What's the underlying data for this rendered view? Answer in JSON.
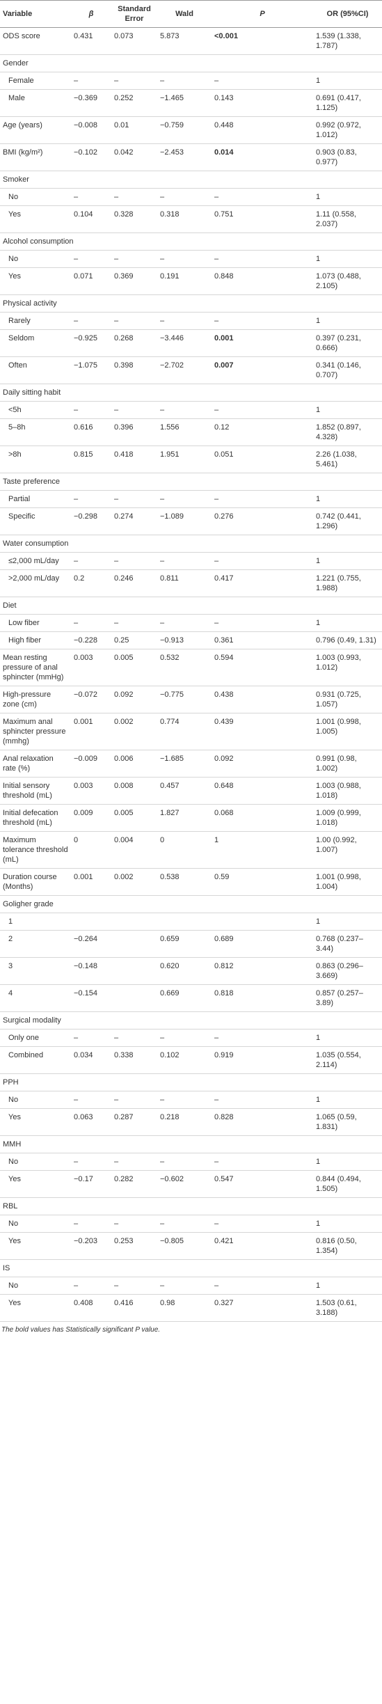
{
  "table": {
    "header": [
      "Variable",
      "β",
      "Standard Error",
      "Wald",
      "P",
      "OR (95%CI)"
    ],
    "rows": [
      {
        "cells": [
          "ODS score",
          "0.431",
          "0.073",
          "5.873",
          "<0.001",
          "1.539 (1.338, 1.787)"
        ],
        "bold": [
          4
        ]
      },
      {
        "cells": [
          "Gender"
        ]
      },
      {
        "cells": [
          "Female",
          "–",
          "–",
          "–",
          "–",
          "1"
        ],
        "indent": true
      },
      {
        "cells": [
          "Male",
          "−0.369",
          "0.252",
          "−1.465",
          "0.143",
          "0.691 (0.417, 1.125)"
        ],
        "indent": true
      },
      {
        "cells": [
          "Age (years)",
          "−0.008",
          "0.01",
          "−0.759",
          "0.448",
          "0.992 (0.972, 1.012)"
        ]
      },
      {
        "cells": [
          "BMI (kg/m²)",
          "−0.102",
          "0.042",
          "−2.453",
          "0.014",
          "0.903 (0.83, 0.977)"
        ],
        "bold": [
          4
        ]
      },
      {
        "cells": [
          "Smoker"
        ]
      },
      {
        "cells": [
          "No",
          "–",
          "–",
          "–",
          "–",
          "1"
        ],
        "indent": true
      },
      {
        "cells": [
          "Yes",
          "0.104",
          "0.328",
          "0.318",
          "0.751",
          "1.11 (0.558, 2.037)"
        ],
        "indent": true
      },
      {
        "cells": [
          "Alcohol consumption"
        ]
      },
      {
        "cells": [
          "No",
          "–",
          "–",
          "–",
          "–",
          "1"
        ],
        "indent": true
      },
      {
        "cells": [
          "Yes",
          "0.071",
          "0.369",
          "0.191",
          "0.848",
          "1.073 (0.488, 2.105)"
        ],
        "indent": true
      },
      {
        "cells": [
          "Physical activity"
        ]
      },
      {
        "cells": [
          "Rarely",
          "–",
          "–",
          "–",
          "–",
          "1"
        ],
        "indent": true
      },
      {
        "cells": [
          "Seldom",
          "−0.925",
          "0.268",
          "−3.446",
          "0.001",
          "0.397 (0.231, 0.666)"
        ],
        "indent": true,
        "bold": [
          4
        ]
      },
      {
        "cells": [
          "Often",
          "−1.075",
          "0.398",
          "−2.702",
          "0.007",
          "0.341 (0.146, 0.707)"
        ],
        "indent": true,
        "bold": [
          4
        ]
      },
      {
        "cells": [
          "Daily sitting habit"
        ]
      },
      {
        "cells": [
          "<5h",
          "–",
          "–",
          "–",
          "–",
          "1"
        ],
        "indent": true
      },
      {
        "cells": [
          "5–8h",
          "0.616",
          "0.396",
          "1.556",
          "0.12",
          "1.852 (0.897, 4.328)"
        ],
        "indent": true
      },
      {
        "cells": [
          ">8h",
          "0.815",
          "0.418",
          "1.951",
          "0.051",
          "2.26 (1.038, 5.461)"
        ],
        "indent": true
      },
      {
        "cells": [
          "Taste preference"
        ]
      },
      {
        "cells": [
          "Partial",
          "–",
          "–",
          "–",
          "–",
          "1"
        ],
        "indent": true
      },
      {
        "cells": [
          "Specific",
          "−0.298",
          "0.274",
          "−1.089",
          "0.276",
          "0.742 (0.441, 1.296)"
        ],
        "indent": true
      },
      {
        "cells": [
          "Water consumption"
        ]
      },
      {
        "cells": [
          "≤2,000 mL/day",
          "–",
          "–",
          "–",
          "–",
          "1"
        ],
        "indent": true
      },
      {
        "cells": [
          ">2,000 mL/day",
          "0.2",
          "0.246",
          "0.811",
          "0.417",
          "1.221 (0.755, 1.988)"
        ],
        "indent": true
      },
      {
        "cells": [
          "Diet"
        ]
      },
      {
        "cells": [
          "Low fiber",
          "–",
          "–",
          "–",
          "–",
          "1"
        ],
        "indent": true
      },
      {
        "cells": [
          "High fiber",
          "−0.228",
          "0.25",
          "−0.913",
          "0.361",
          "0.796 (0.49, 1.31)"
        ],
        "indent": true
      },
      {
        "cells": [
          "Mean resting pressure of anal sphincter (mmHg)",
          "0.003",
          "0.005",
          "0.532",
          "0.594",
          "1.003 (0.993, 1.012)"
        ]
      },
      {
        "cells": [
          "High-pressure zone (cm)",
          "−0.072",
          "0.092",
          "−0.775",
          "0.438",
          "0.931 (0.725, 1.057)"
        ]
      },
      {
        "cells": [
          "Maximum anal sphincter pressure (mmhg)",
          "0.001",
          "0.002",
          "0.774",
          "0.439",
          "1.001 (0.998, 1.005)"
        ]
      },
      {
        "cells": [
          "Anal relaxation rate (%)",
          "−0.009",
          "0.006",
          "−1.685",
          "0.092",
          "0.991 (0.98, 1.002)"
        ]
      },
      {
        "cells": [
          "Initial sensory threshold (mL)",
          "0.003",
          "0.008",
          "0.457",
          "0.648",
          "1.003 (0.988, 1.018)"
        ]
      },
      {
        "cells": [
          "Initial defecation threshold (mL)",
          "0.009",
          "0.005",
          "1.827",
          "0.068",
          "1.009 (0.999, 1.018)"
        ]
      },
      {
        "cells": [
          "Maximum tolerance threshold (mL)",
          "0",
          "0.004",
          "0",
          "1",
          "1.00 (0.992, 1.007)"
        ]
      },
      {
        "cells": [
          "Duration course (Months)",
          "0.001",
          "0.002",
          "0.538",
          "0.59",
          "1.001 (0.998, 1.004)"
        ]
      },
      {
        "cells": [
          "Goligher grade"
        ]
      },
      {
        "cells": [
          "1",
          null,
          null,
          null,
          null,
          "1"
        ],
        "indent": true
      },
      {
        "cells": [
          "2",
          "−0.264",
          null,
          "0.659",
          "0.689",
          "0.768 (0.237–3.44)"
        ],
        "indent": true
      },
      {
        "cells": [
          "3",
          "−0.148",
          null,
          "0.620",
          "0.812",
          "0.863 (0.296–3.669)"
        ],
        "indent": true
      },
      {
        "cells": [
          "4",
          "−0.154",
          null,
          "0.669",
          "0.818",
          "0.857 (0.257–3.89)"
        ],
        "indent": true
      },
      {
        "cells": [
          "Surgical modality"
        ]
      },
      {
        "cells": [
          "Only one",
          "–",
          "–",
          "–",
          "–",
          "1"
        ],
        "indent": true
      },
      {
        "cells": [
          "Combined",
          "0.034",
          "0.338",
          "0.102",
          "0.919",
          "1.035 (0.554, 2.114)"
        ],
        "indent": true
      },
      {
        "cells": [
          "PPH"
        ]
      },
      {
        "cells": [
          "No",
          "–",
          "–",
          "–",
          "–",
          "1"
        ],
        "indent": true
      },
      {
        "cells": [
          "Yes",
          "0.063",
          "0.287",
          "0.218",
          "0.828",
          "1.065 (0.59, 1.831)"
        ],
        "indent": true
      },
      {
        "cells": [
          "MMH"
        ]
      },
      {
        "cells": [
          "No",
          "–",
          "–",
          "–",
          "–",
          "1"
        ],
        "indent": true
      },
      {
        "cells": [
          "Yes",
          "−0.17",
          "0.282",
          "−0.602",
          "0.547",
          "0.844 (0.494, 1.505)"
        ],
        "indent": true
      },
      {
        "cells": [
          "RBL"
        ]
      },
      {
        "cells": [
          "No",
          "–",
          "–",
          "–",
          "–",
          "1"
        ],
        "indent": true
      },
      {
        "cells": [
          "Yes",
          "−0.203",
          "0.253",
          "−0.805",
          "0.421",
          "0.816 (0.50, 1.354)"
        ],
        "indent": true
      },
      {
        "cells": [
          "IS"
        ]
      },
      {
        "cells": [
          "No",
          "–",
          "–",
          "–",
          "–",
          "1"
        ],
        "indent": true
      },
      {
        "cells": [
          "Yes",
          "0.408",
          "0.416",
          "0.98",
          "0.327",
          "1.503 (0.61, 3.188)"
        ],
        "indent": true
      }
    ],
    "footnote": "The bold values has Statistically significant P value."
  }
}
